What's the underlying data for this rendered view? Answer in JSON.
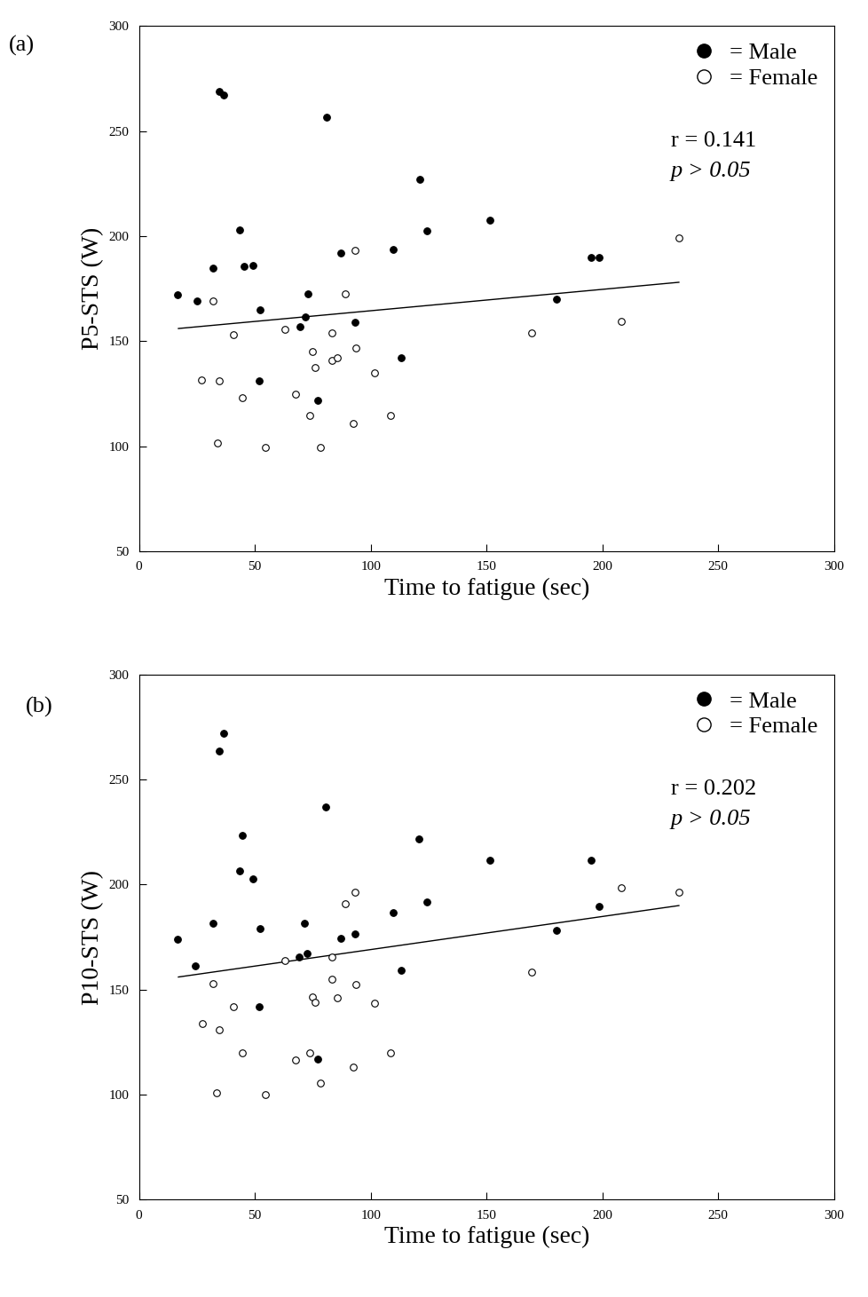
{
  "chart_data": [
    {
      "type": "scatter",
      "title": "(a)",
      "x_label": "Time to fatigue (sec)",
      "y_label": "P5-STS (W)",
      "xlim": [
        0,
        300
      ],
      "xticks": [
        0,
        50,
        100,
        150,
        200,
        250,
        300
      ],
      "ylim": [
        50,
        300
      ],
      "yticks": [
        50,
        100,
        150,
        200,
        250,
        300
      ],
      "legend": "upper right",
      "annotations": [
        "r = 0.141",
        "p > 0.05"
      ],
      "series": [
        {
          "name": "= Male",
          "color": "#000000",
          "marker": "o",
          "x": [
            16.6,
            25,
            34.6,
            36.4,
            32,
            43.4,
            45.3,
            49.3,
            52.3,
            52,
            69.6,
            71.8,
            72.9,
            77,
            81,
            87.2,
            93.1,
            109.7,
            113,
            121,
            124.4,
            151.3,
            180,
            195,
            198.4
          ],
          "values": [
            172,
            169,
            268.7,
            267,
            184.6,
            203,
            185.4,
            186,
            165,
            131,
            157,
            161.4,
            172.4,
            122,
            256.5,
            191.9,
            159,
            193.5,
            142,
            226.8,
            202.4,
            207.7,
            170,
            190,
            190
          ]
        },
        {
          "name": "= Female",
          "color": "#ffffff",
          "marker": "o",
          "x": [
            32,
            27,
            34.6,
            40.9,
            34,
            44.5,
            54.5,
            63,
            67.4,
            73.6,
            75,
            75.9,
            78.4,
            83.2,
            83.2,
            85.4,
            89,
            93.1,
            93.5,
            92.4,
            101.6,
            108.6,
            169.3,
            208.3,
            233
          ],
          "values": [
            169,
            131.7,
            131.3,
            153,
            101.6,
            123,
            99.6,
            155.7,
            124.8,
            114.6,
            145,
            137.4,
            99.6,
            154,
            140.6,
            141.9,
            172.4,
            193,
            146.7,
            110.6,
            135,
            114.6,
            153.7,
            159.3,
            199.2
          ]
        }
      ],
      "trend_line": {
        "x": [
          17,
          233
        ],
        "y": [
          156,
          178
        ]
      }
    },
    {
      "type": "scatter",
      "title": "(b)",
      "x_label": "Time to fatigue (sec)",
      "y_label": "P10-STS (W)",
      "xlim": [
        0,
        300
      ],
      "xticks": [
        0,
        50,
        100,
        150,
        200,
        250,
        300
      ],
      "ylim": [
        50,
        300
      ],
      "yticks": [
        50,
        100,
        150,
        200,
        250,
        300
      ],
      "legend": "upper right",
      "annotations": [
        "r = 0.202",
        "p > 0.05"
      ],
      "series": [
        {
          "name": "= Male",
          "color": "#000000",
          "marker": "o",
          "x": [
            16.6,
            24.3,
            34.6,
            36.4,
            32,
            43.4,
            44.5,
            49.3,
            52.3,
            52,
            69.2,
            71.4,
            72.5,
            77,
            80.6,
            87.2,
            93.1,
            109.7,
            113,
            120.7,
            124.4,
            151.3,
            180.3,
            195,
            198.4
          ],
          "values": [
            173.8,
            161.2,
            263.5,
            272,
            181.5,
            206.3,
            223.3,
            202.6,
            179,
            142,
            165.7,
            181.5,
            167.3,
            117,
            237,
            174.6,
            176.6,
            186.8,
            159,
            221.7,
            191.6,
            211.5,
            178,
            211.5,
            189.6
          ]
        },
        {
          "name": "= Female",
          "color": "#ffffff",
          "marker": "o",
          "x": [
            32,
            27.2,
            34.6,
            40.9,
            33.5,
            44.5,
            54.5,
            63,
            67.4,
            73.6,
            75,
            75.9,
            78.4,
            83.2,
            83.2,
            85.4,
            89,
            93.1,
            93.5,
            92.4,
            101.6,
            108.6,
            169.3,
            208.3,
            233
          ],
          "values": [
            153,
            134,
            130.8,
            141.7,
            100.7,
            119.8,
            100,
            164,
            116.6,
            119.8,
            146.6,
            143.8,
            105.6,
            165.7,
            155,
            146.2,
            190.8,
            196.5,
            152.3,
            113.3,
            143.4,
            119.8,
            158.2,
            198.5,
            196.5
          ]
        }
      ],
      "trend_line": {
        "x": [
          17,
          233
        ],
        "y": [
          156,
          190
        ]
      }
    }
  ]
}
